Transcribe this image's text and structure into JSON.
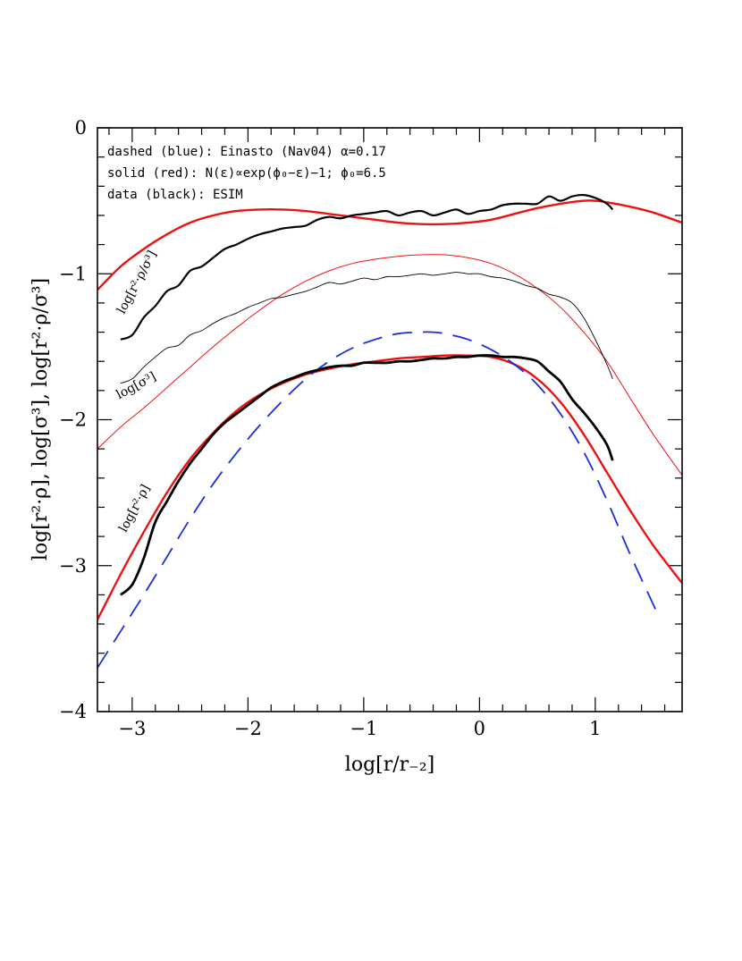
{
  "chart_data": {
    "type": "line",
    "xlabel": "log[r/r₋₂]",
    "ylabel": "log[r²·ρ], log[σ³], log[r²·ρ/σ³]",
    "xlim": [
      -3.3,
      1.75
    ],
    "ylim": [
      -4,
      0
    ],
    "x_ticks": [
      -3,
      -2,
      -1,
      0,
      1
    ],
    "y_ticks": [
      -4,
      -3,
      -2,
      -1,
      0
    ],
    "x_tick_labels": [
      "−3",
      "−2",
      "−1",
      "0",
      "1"
    ],
    "y_tick_labels": [
      "−4",
      "−3",
      "−2",
      "−1",
      "0"
    ],
    "grid": false,
    "legend_text": [
      "dashed (blue): Einasto (Nav04) α=0.17",
      "solid (red): N(ε)∝exp(ϕ₀−ε)−1;  ϕ₀=6.5",
      "data (black): ESIM"
    ],
    "curve_labels": [
      {
        "text": "log[r²·ρ/σ³]",
        "x": -2.93,
        "y": -1.07,
        "angle": -62
      },
      {
        "text": "log[σ³]",
        "x": -2.95,
        "y": -1.79,
        "angle": -28
      },
      {
        "text": "log[r²·ρ]",
        "x": -2.95,
        "y": -2.62,
        "angle": -62
      }
    ],
    "series": [
      {
        "id": "red-upper",
        "color": "#ee1111",
        "width": 2.4,
        "dash": "",
        "x": [
          -3.3,
          -3.1,
          -2.9,
          -2.7,
          -2.5,
          -2.3,
          -2.1,
          -1.9,
          -1.7,
          -1.5,
          -1.3,
          -1.1,
          -0.9,
          -0.7,
          -0.5,
          -0.3,
          -0.1,
          0.1,
          0.3,
          0.5,
          0.7,
          0.9,
          1.0,
          1.1,
          1.3,
          1.5,
          1.75
        ],
        "y": [
          -1.11,
          -0.95,
          -0.83,
          -0.73,
          -0.65,
          -0.6,
          -0.57,
          -0.56,
          -0.56,
          -0.57,
          -0.59,
          -0.61,
          -0.63,
          -0.65,
          -0.66,
          -0.66,
          -0.65,
          -0.63,
          -0.59,
          -0.55,
          -0.52,
          -0.5,
          -0.5,
          -0.51,
          -0.54,
          -0.58,
          -0.65
        ]
      },
      {
        "id": "red-sigma",
        "color": "#ee1111",
        "width": 1.0,
        "dash": "",
        "x": [
          -3.3,
          -3.1,
          -2.9,
          -2.7,
          -2.5,
          -2.3,
          -2.1,
          -1.9,
          -1.7,
          -1.5,
          -1.3,
          -1.1,
          -0.9,
          -0.7,
          -0.5,
          -0.3,
          -0.1,
          0.1,
          0.3,
          0.5,
          0.7,
          0.9,
          1.1,
          1.3,
          1.5,
          1.75
        ],
        "y": [
          -2.2,
          -2.05,
          -1.92,
          -1.78,
          -1.64,
          -1.5,
          -1.37,
          -1.25,
          -1.14,
          -1.05,
          -0.98,
          -0.93,
          -0.9,
          -0.88,
          -0.87,
          -0.87,
          -0.89,
          -0.93,
          -1.0,
          -1.1,
          -1.23,
          -1.4,
          -1.6,
          -1.85,
          -2.1,
          -2.38
        ]
      },
      {
        "id": "red-lower",
        "color": "#ee1111",
        "width": 2.4,
        "dash": "",
        "x": [
          -3.3,
          -3.1,
          -2.9,
          -2.7,
          -2.5,
          -2.3,
          -2.1,
          -1.9,
          -1.7,
          -1.5,
          -1.3,
          -1.1,
          -0.9,
          -0.7,
          -0.5,
          -0.3,
          -0.1,
          0.1,
          0.3,
          0.5,
          0.7,
          0.9,
          1.1,
          1.3,
          1.5,
          1.75
        ],
        "y": [
          -3.37,
          -3.06,
          -2.77,
          -2.5,
          -2.27,
          -2.09,
          -1.94,
          -1.83,
          -1.75,
          -1.69,
          -1.65,
          -1.62,
          -1.6,
          -1.58,
          -1.57,
          -1.56,
          -1.56,
          -1.57,
          -1.62,
          -1.72,
          -1.88,
          -2.1,
          -2.36,
          -2.62,
          -2.86,
          -3.12
        ]
      },
      {
        "id": "blue-einasto",
        "color": "#1a2ee0",
        "width": 1.8,
        "dash": "22,12",
        "x": [
          -3.3,
          -3.1,
          -2.9,
          -2.7,
          -2.5,
          -2.3,
          -2.1,
          -1.9,
          -1.7,
          -1.5,
          -1.3,
          -1.1,
          -0.9,
          -0.7,
          -0.5,
          -0.4,
          -0.3,
          -0.1,
          0.1,
          0.3,
          0.5,
          0.7,
          0.9,
          1.1,
          1.3,
          1.55
        ],
        "y": [
          -3.7,
          -3.45,
          -3.2,
          -2.94,
          -2.68,
          -2.44,
          -2.23,
          -2.04,
          -1.87,
          -1.72,
          -1.6,
          -1.51,
          -1.45,
          -1.41,
          -1.4,
          -1.4,
          -1.41,
          -1.45,
          -1.52,
          -1.62,
          -1.76,
          -1.96,
          -2.22,
          -2.55,
          -2.92,
          -3.35
        ]
      },
      {
        "id": "black-sigma3-ratio",
        "color": "#000000",
        "width": 2.2,
        "dash": "",
        "x": [
          -3.1,
          -3.0,
          -2.9,
          -2.8,
          -2.7,
          -2.6,
          -2.5,
          -2.4,
          -2.3,
          -2.2,
          -2.1,
          -2.0,
          -1.9,
          -1.8,
          -1.7,
          -1.6,
          -1.5,
          -1.4,
          -1.3,
          -1.2,
          -1.1,
          -1.0,
          -0.9,
          -0.8,
          -0.7,
          -0.6,
          -0.5,
          -0.4,
          -0.3,
          -0.2,
          -0.1,
          0.0,
          0.1,
          0.2,
          0.3,
          0.4,
          0.5,
          0.6,
          0.7,
          0.8,
          0.9,
          1.0,
          1.1,
          1.15
        ],
        "y": [
          -1.45,
          -1.42,
          -1.3,
          -1.22,
          -1.12,
          -1.08,
          -0.98,
          -0.95,
          -0.89,
          -0.83,
          -0.8,
          -0.76,
          -0.73,
          -0.71,
          -0.69,
          -0.68,
          -0.67,
          -0.63,
          -0.61,
          -0.62,
          -0.6,
          -0.59,
          -0.58,
          -0.57,
          -0.6,
          -0.58,
          -0.57,
          -0.6,
          -0.58,
          -0.56,
          -0.59,
          -0.57,
          -0.56,
          -0.53,
          -0.52,
          -0.52,
          -0.52,
          -0.47,
          -0.5,
          -0.47,
          -0.46,
          -0.48,
          -0.52,
          -0.56
        ]
      },
      {
        "id": "black-sigma3",
        "color": "#000000",
        "width": 0.9,
        "dash": "",
        "x": [
          -3.1,
          -3.0,
          -2.9,
          -2.8,
          -2.7,
          -2.6,
          -2.5,
          -2.4,
          -2.3,
          -2.2,
          -2.1,
          -2.0,
          -1.9,
          -1.8,
          -1.7,
          -1.6,
          -1.5,
          -1.4,
          -1.3,
          -1.2,
          -1.1,
          -1.0,
          -0.9,
          -0.8,
          -0.7,
          -0.6,
          -0.5,
          -0.4,
          -0.3,
          -0.2,
          -0.1,
          0.0,
          0.1,
          0.2,
          0.3,
          0.4,
          0.5,
          0.6,
          0.7,
          0.8,
          0.9,
          1.0,
          1.1,
          1.15
        ],
        "y": [
          -1.75,
          -1.72,
          -1.64,
          -1.57,
          -1.51,
          -1.49,
          -1.42,
          -1.39,
          -1.34,
          -1.3,
          -1.27,
          -1.23,
          -1.2,
          -1.17,
          -1.16,
          -1.14,
          -1.12,
          -1.09,
          -1.06,
          -1.07,
          -1.05,
          -1.03,
          -1.04,
          -1.02,
          -1.02,
          -1.01,
          -1.0,
          -1.01,
          -1.0,
          -0.99,
          -1.0,
          -1.0,
          -1.02,
          -1.03,
          -1.05,
          -1.08,
          -1.1,
          -1.14,
          -1.16,
          -1.2,
          -1.3,
          -1.45,
          -1.62,
          -1.72
        ]
      },
      {
        "id": "black-rho",
        "color": "#000000",
        "width": 2.8,
        "dash": "",
        "x": [
          -3.1,
          -3.0,
          -2.9,
          -2.8,
          -2.7,
          -2.6,
          -2.5,
          -2.4,
          -2.3,
          -2.2,
          -2.1,
          -2.0,
          -1.9,
          -1.8,
          -1.7,
          -1.6,
          -1.5,
          -1.4,
          -1.3,
          -1.2,
          -1.1,
          -1.0,
          -0.9,
          -0.8,
          -0.7,
          -0.6,
          -0.5,
          -0.4,
          -0.3,
          -0.2,
          -0.1,
          0.0,
          0.1,
          0.2,
          0.3,
          0.4,
          0.5,
          0.6,
          0.7,
          0.8,
          0.9,
          1.0,
          1.1,
          1.15
        ],
        "y": [
          -3.2,
          -3.13,
          -2.95,
          -2.7,
          -2.56,
          -2.42,
          -2.3,
          -2.2,
          -2.1,
          -2.02,
          -1.96,
          -1.9,
          -1.84,
          -1.78,
          -1.74,
          -1.71,
          -1.68,
          -1.66,
          -1.64,
          -1.63,
          -1.63,
          -1.61,
          -1.61,
          -1.61,
          -1.6,
          -1.6,
          -1.59,
          -1.58,
          -1.58,
          -1.57,
          -1.57,
          -1.56,
          -1.56,
          -1.57,
          -1.57,
          -1.58,
          -1.6,
          -1.67,
          -1.74,
          -1.86,
          -1.95,
          -2.05,
          -2.17,
          -2.28
        ]
      }
    ]
  }
}
